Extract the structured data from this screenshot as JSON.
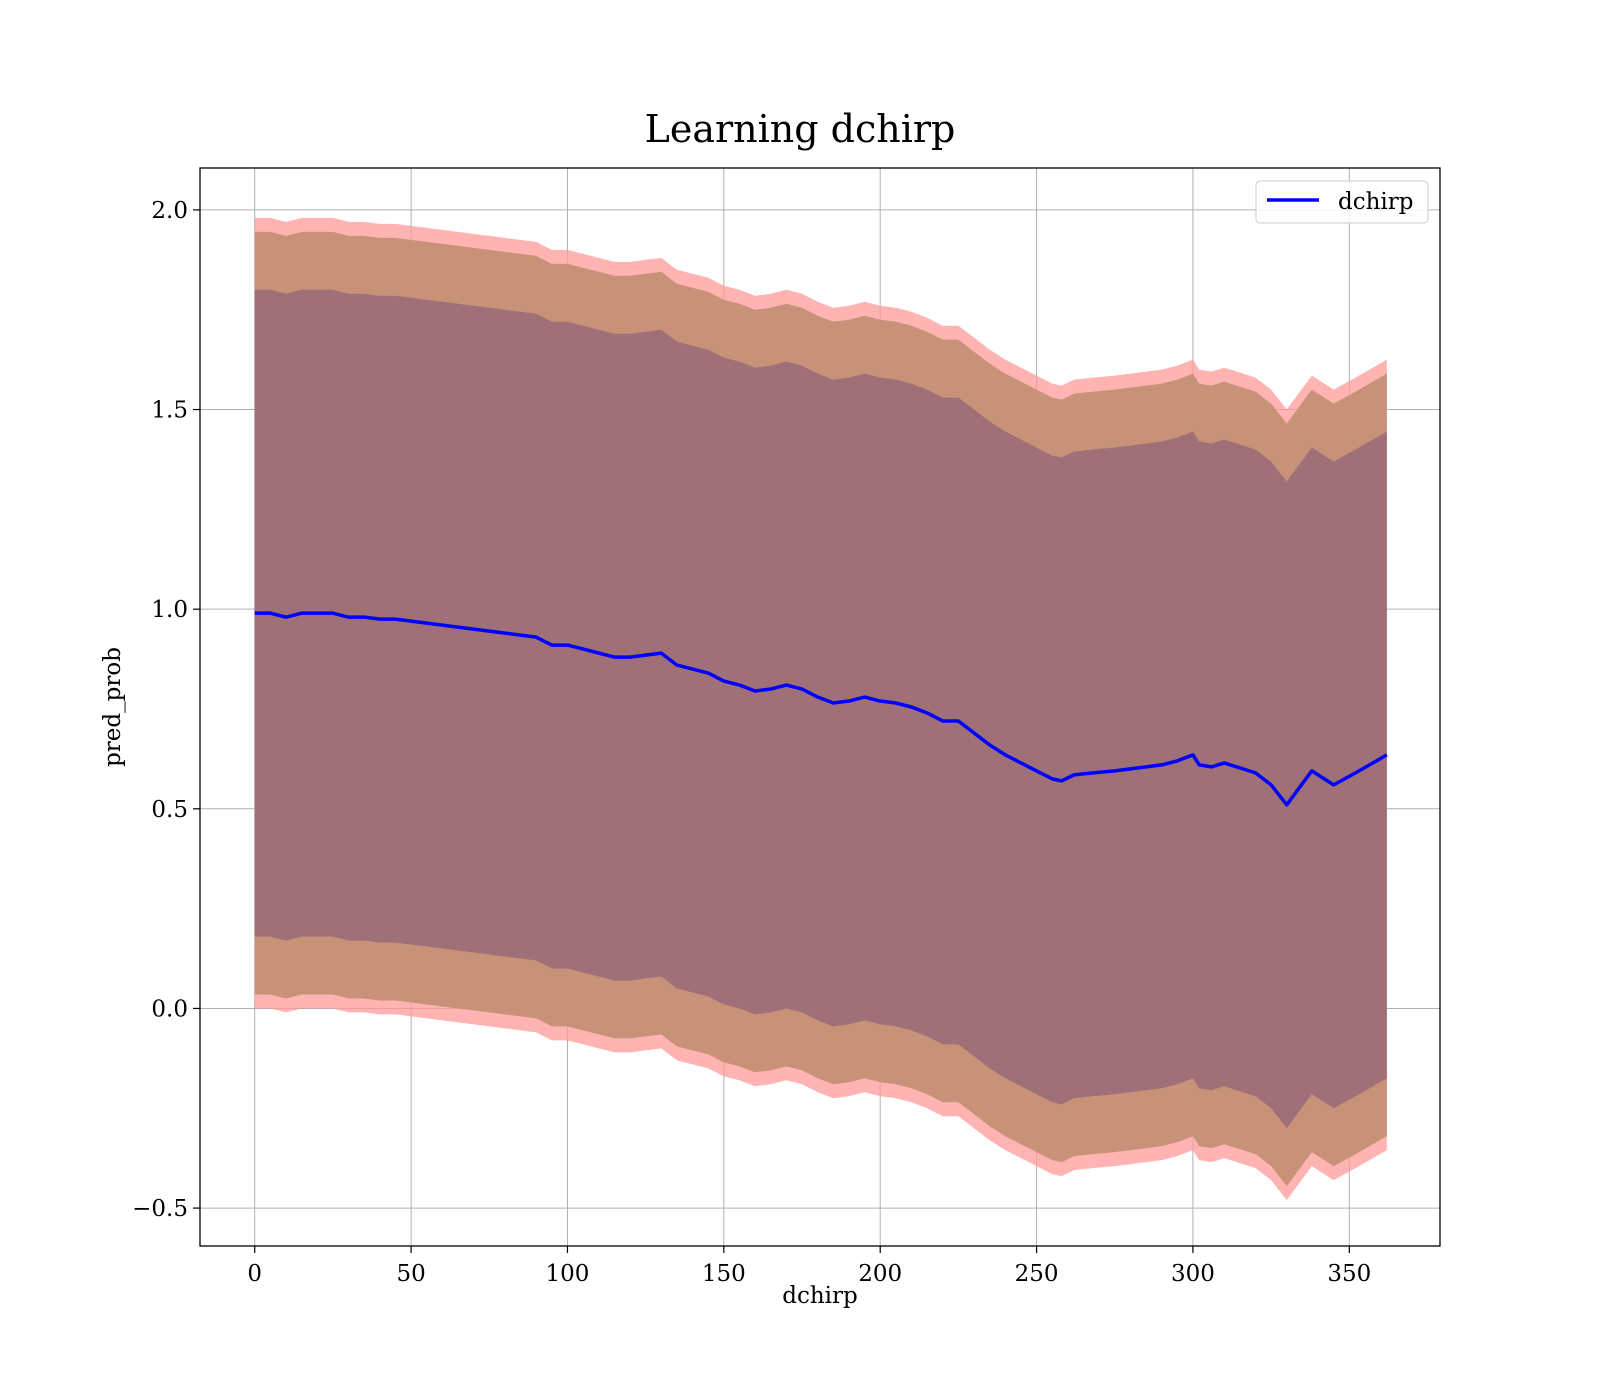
{
  "chart_data": {
    "type": "line",
    "title": "Learning dchirp",
    "xlabel": "dchirp",
    "ylabel": "pred_prob",
    "xlim": [
      -17.5,
      379
    ],
    "ylim": [
      -0.595,
      2.105
    ],
    "x_ticks": [
      0,
      50,
      100,
      150,
      200,
      250,
      300,
      350
    ],
    "y_ticks": [
      -0.5,
      0.0,
      0.5,
      1.0,
      1.5,
      2.0
    ],
    "x_tick_labels": [
      "0",
      "50",
      "100",
      "150",
      "200",
      "250",
      "300",
      "350"
    ],
    "y_tick_labels": [
      "−0.5",
      "0.0",
      "0.5",
      "1.0",
      "1.5",
      "2.0"
    ],
    "grid": true,
    "legend": {
      "position": "top-right",
      "entries": [
        "dchirp"
      ]
    },
    "colors": {
      "line": "#0000ff",
      "band_outer": "#ff9999",
      "band_middle": "#c89278",
      "band_inner": "#a07078",
      "grid": "#b0b0b0"
    },
    "series": [
      {
        "name": "dchirp",
        "x": [
          0,
          5,
          10,
          15,
          20,
          25,
          30,
          35,
          40,
          45,
          50,
          55,
          60,
          65,
          70,
          75,
          80,
          85,
          90,
          95,
          100,
          105,
          110,
          115,
          120,
          125,
          130,
          135,
          140,
          145,
          150,
          155,
          160,
          165,
          170,
          175,
          180,
          185,
          190,
          195,
          200,
          205,
          210,
          215,
          220,
          225,
          230,
          235,
          240,
          245,
          250,
          255,
          258,
          262,
          268,
          275,
          280,
          285,
          290,
          295,
          300,
          302,
          306,
          310,
          320,
          325,
          330,
          338,
          345,
          352,
          362
        ],
        "y": [
          0.99,
          0.99,
          0.98,
          0.99,
          0.99,
          0.99,
          0.98,
          0.98,
          0.975,
          0.975,
          0.97,
          0.965,
          0.96,
          0.955,
          0.95,
          0.945,
          0.94,
          0.935,
          0.93,
          0.91,
          0.91,
          0.9,
          0.89,
          0.88,
          0.88,
          0.885,
          0.89,
          0.86,
          0.85,
          0.84,
          0.82,
          0.81,
          0.795,
          0.8,
          0.81,
          0.8,
          0.78,
          0.765,
          0.77,
          0.78,
          0.77,
          0.765,
          0.755,
          0.74,
          0.72,
          0.72,
          0.69,
          0.66,
          0.635,
          0.615,
          0.595,
          0.575,
          0.57,
          0.585,
          0.59,
          0.595,
          0.6,
          0.605,
          0.61,
          0.62,
          0.635,
          0.61,
          0.605,
          0.615,
          0.59,
          0.56,
          0.51,
          0.595,
          0.56,
          0.59,
          0.635
        ]
      }
    ],
    "bands": [
      {
        "name": "outer",
        "offset_upper": 0.99,
        "offset_lower_start": 0.99,
        "offset_lower_end": 0.99
      },
      {
        "name": "middle",
        "offset_upper_start": 0.955,
        "offset_upper_end": 0.955
      },
      {
        "name": "inner",
        "offset_start": 0.81,
        "offset_end": 0.81
      }
    ]
  }
}
